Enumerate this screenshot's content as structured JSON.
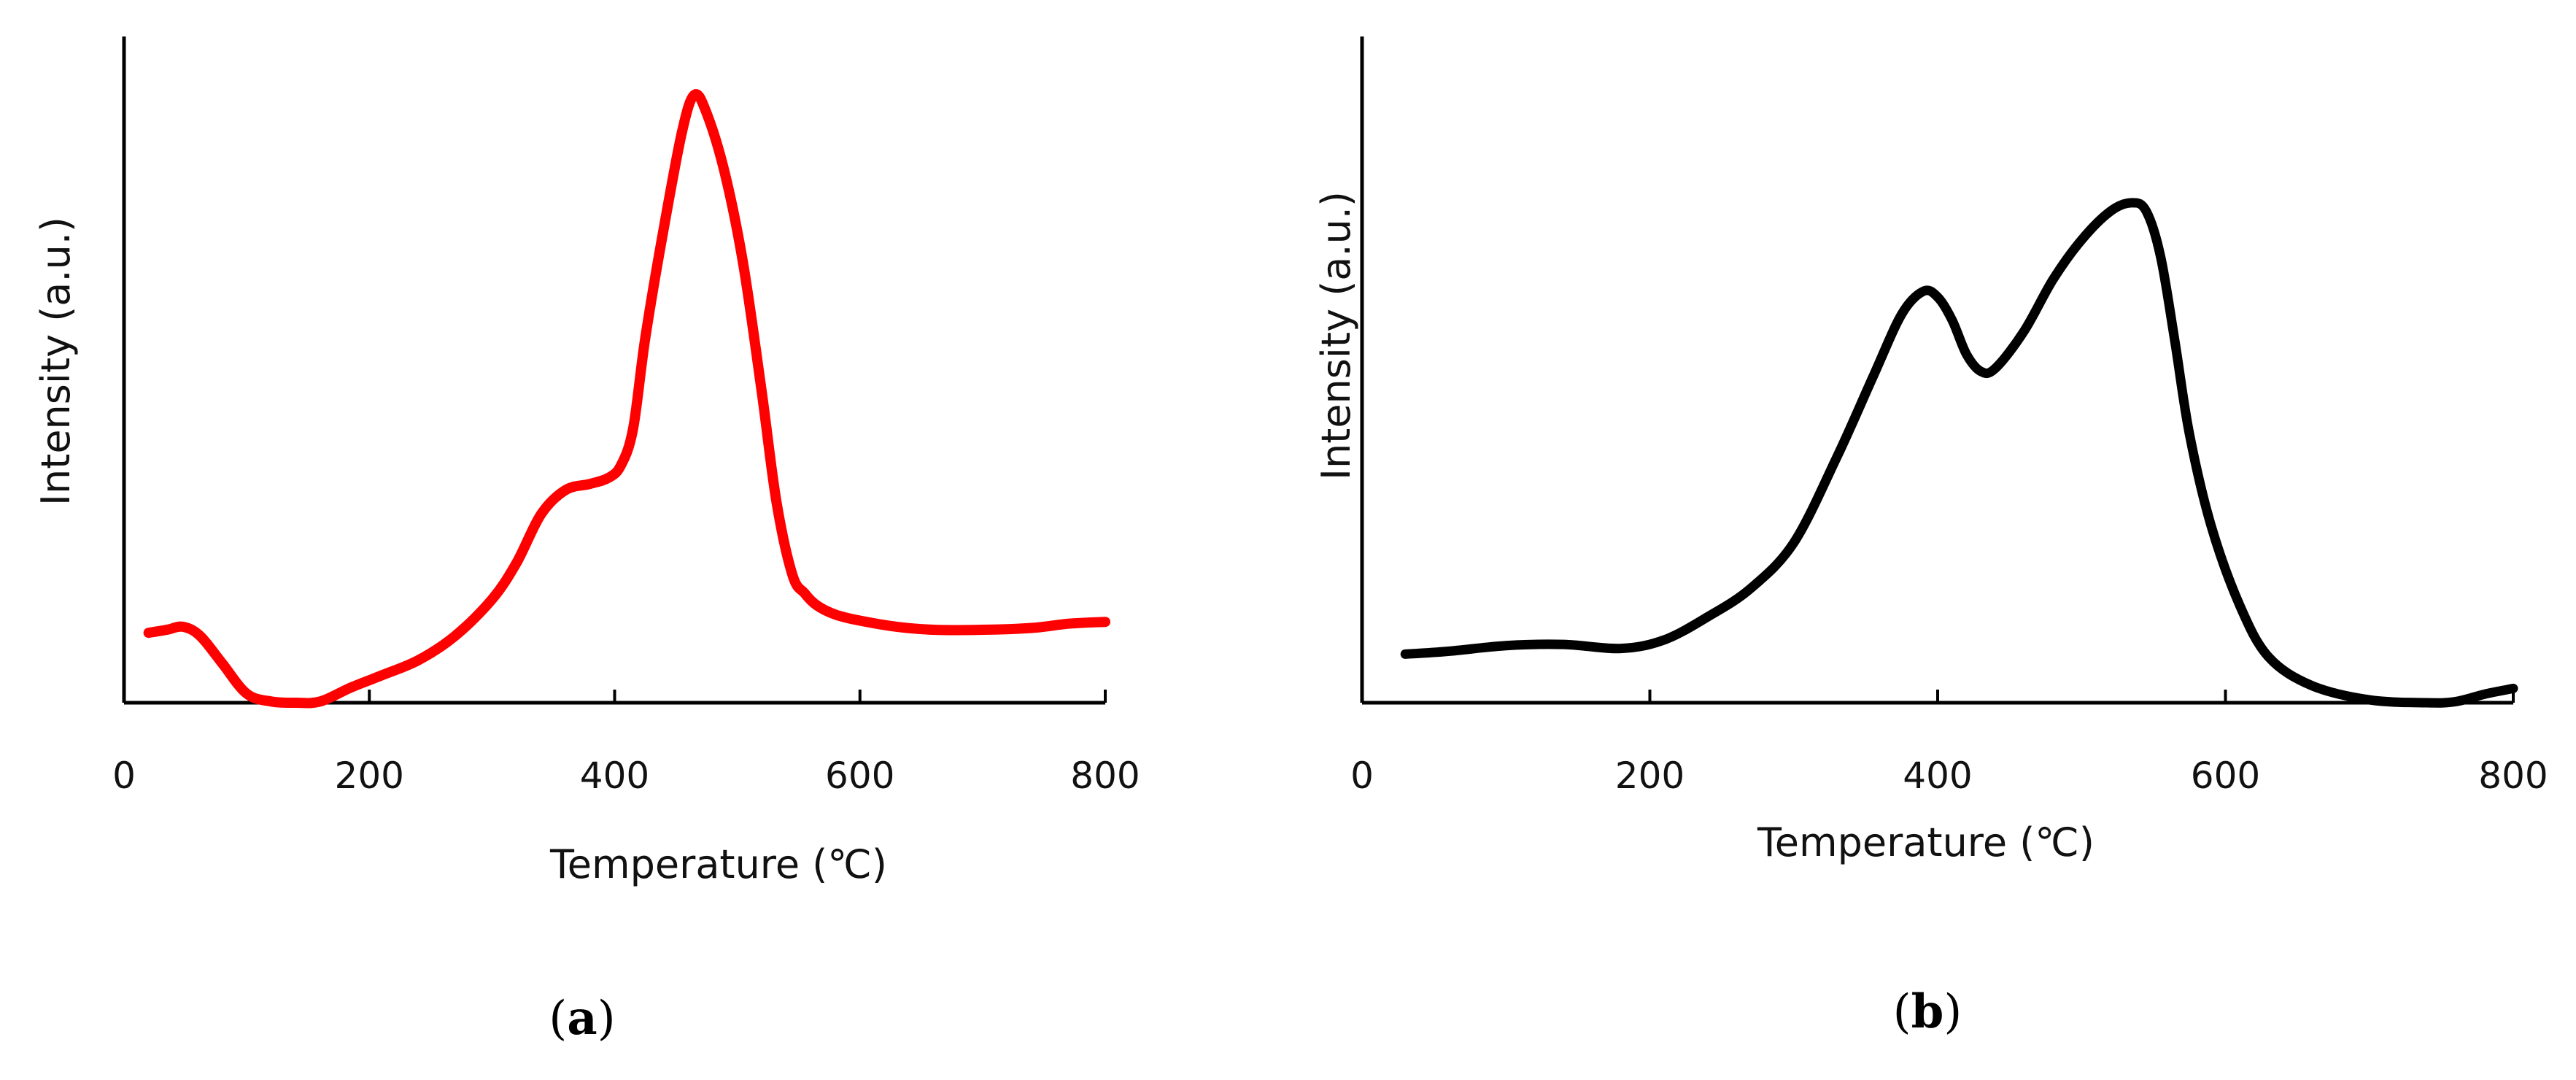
{
  "chart_data": [
    {
      "type": "line",
      "panel": "a",
      "panel_label": [
        "(",
        "a",
        ")"
      ],
      "xlabel": "Temperature (℃)",
      "ylabel": "Intensity (a.u.)",
      "xlim": [
        0,
        800
      ],
      "ylim": [
        0,
        100
      ],
      "xticks": [
        0,
        200,
        400,
        600,
        800
      ],
      "yticks_shown": false,
      "grid": false,
      "series": [
        {
          "name": "a",
          "color": "#ff0000",
          "x": [
            20,
            35,
            48,
            62,
            80,
            100,
            120,
            140,
            160,
            185,
            210,
            240,
            270,
            300,
            320,
            340,
            360,
            380,
            395,
            405,
            415,
            425,
            440,
            455,
            465,
            475,
            490,
            505,
            520,
            532,
            545,
            555,
            565,
            580,
            600,
            630,
            660,
            700,
            740,
            770,
            800
          ],
          "y": [
            11.5,
            12,
            12.5,
            11,
            6.5,
            1.5,
            0.2,
            0,
            0.2,
            2.5,
            4.5,
            7,
            11,
            17,
            23,
            31,
            35,
            36,
            37,
            39,
            45,
            60,
            78,
            94,
            100,
            97,
            87,
            72,
            51,
            33,
            21,
            18,
            16,
            14.5,
            13.5,
            12.5,
            12,
            12,
            12.3,
            13,
            13.3
          ]
        }
      ]
    },
    {
      "type": "line",
      "panel": "b",
      "panel_label": [
        "(",
        "b",
        ")"
      ],
      "xlabel": "Temperature (℃)",
      "ylabel": "Intensity (a.u.)",
      "xlim": [
        0,
        800
      ],
      "ylim": [
        0,
        100
      ],
      "xticks": [
        0,
        200,
        400,
        600,
        800
      ],
      "yticks_shown": false,
      "grid": false,
      "series": [
        {
          "name": "b",
          "color": "#000000",
          "x": [
            30,
            60,
            100,
            140,
            180,
            210,
            240,
            270,
            300,
            330,
            355,
            375,
            390,
            400,
            410,
            420,
            430,
            440,
            460,
            480,
            500,
            520,
            535,
            545,
            555,
            565,
            575,
            590,
            610,
            630,
            660,
            700,
            740,
            760,
            780,
            800
          ],
          "y": [
            8.5,
            9,
            10,
            10.2,
            9.5,
            11,
            15,
            20,
            28,
            43,
            57,
            68,
            72,
            71,
            67,
            61,
            58,
            58.5,
            65,
            74,
            81,
            86,
            87.5,
            86,
            78,
            63,
            47,
            31,
            17,
            8,
            3,
            0.5,
            0,
            0.2,
            1.5,
            2.5
          ]
        }
      ]
    }
  ]
}
